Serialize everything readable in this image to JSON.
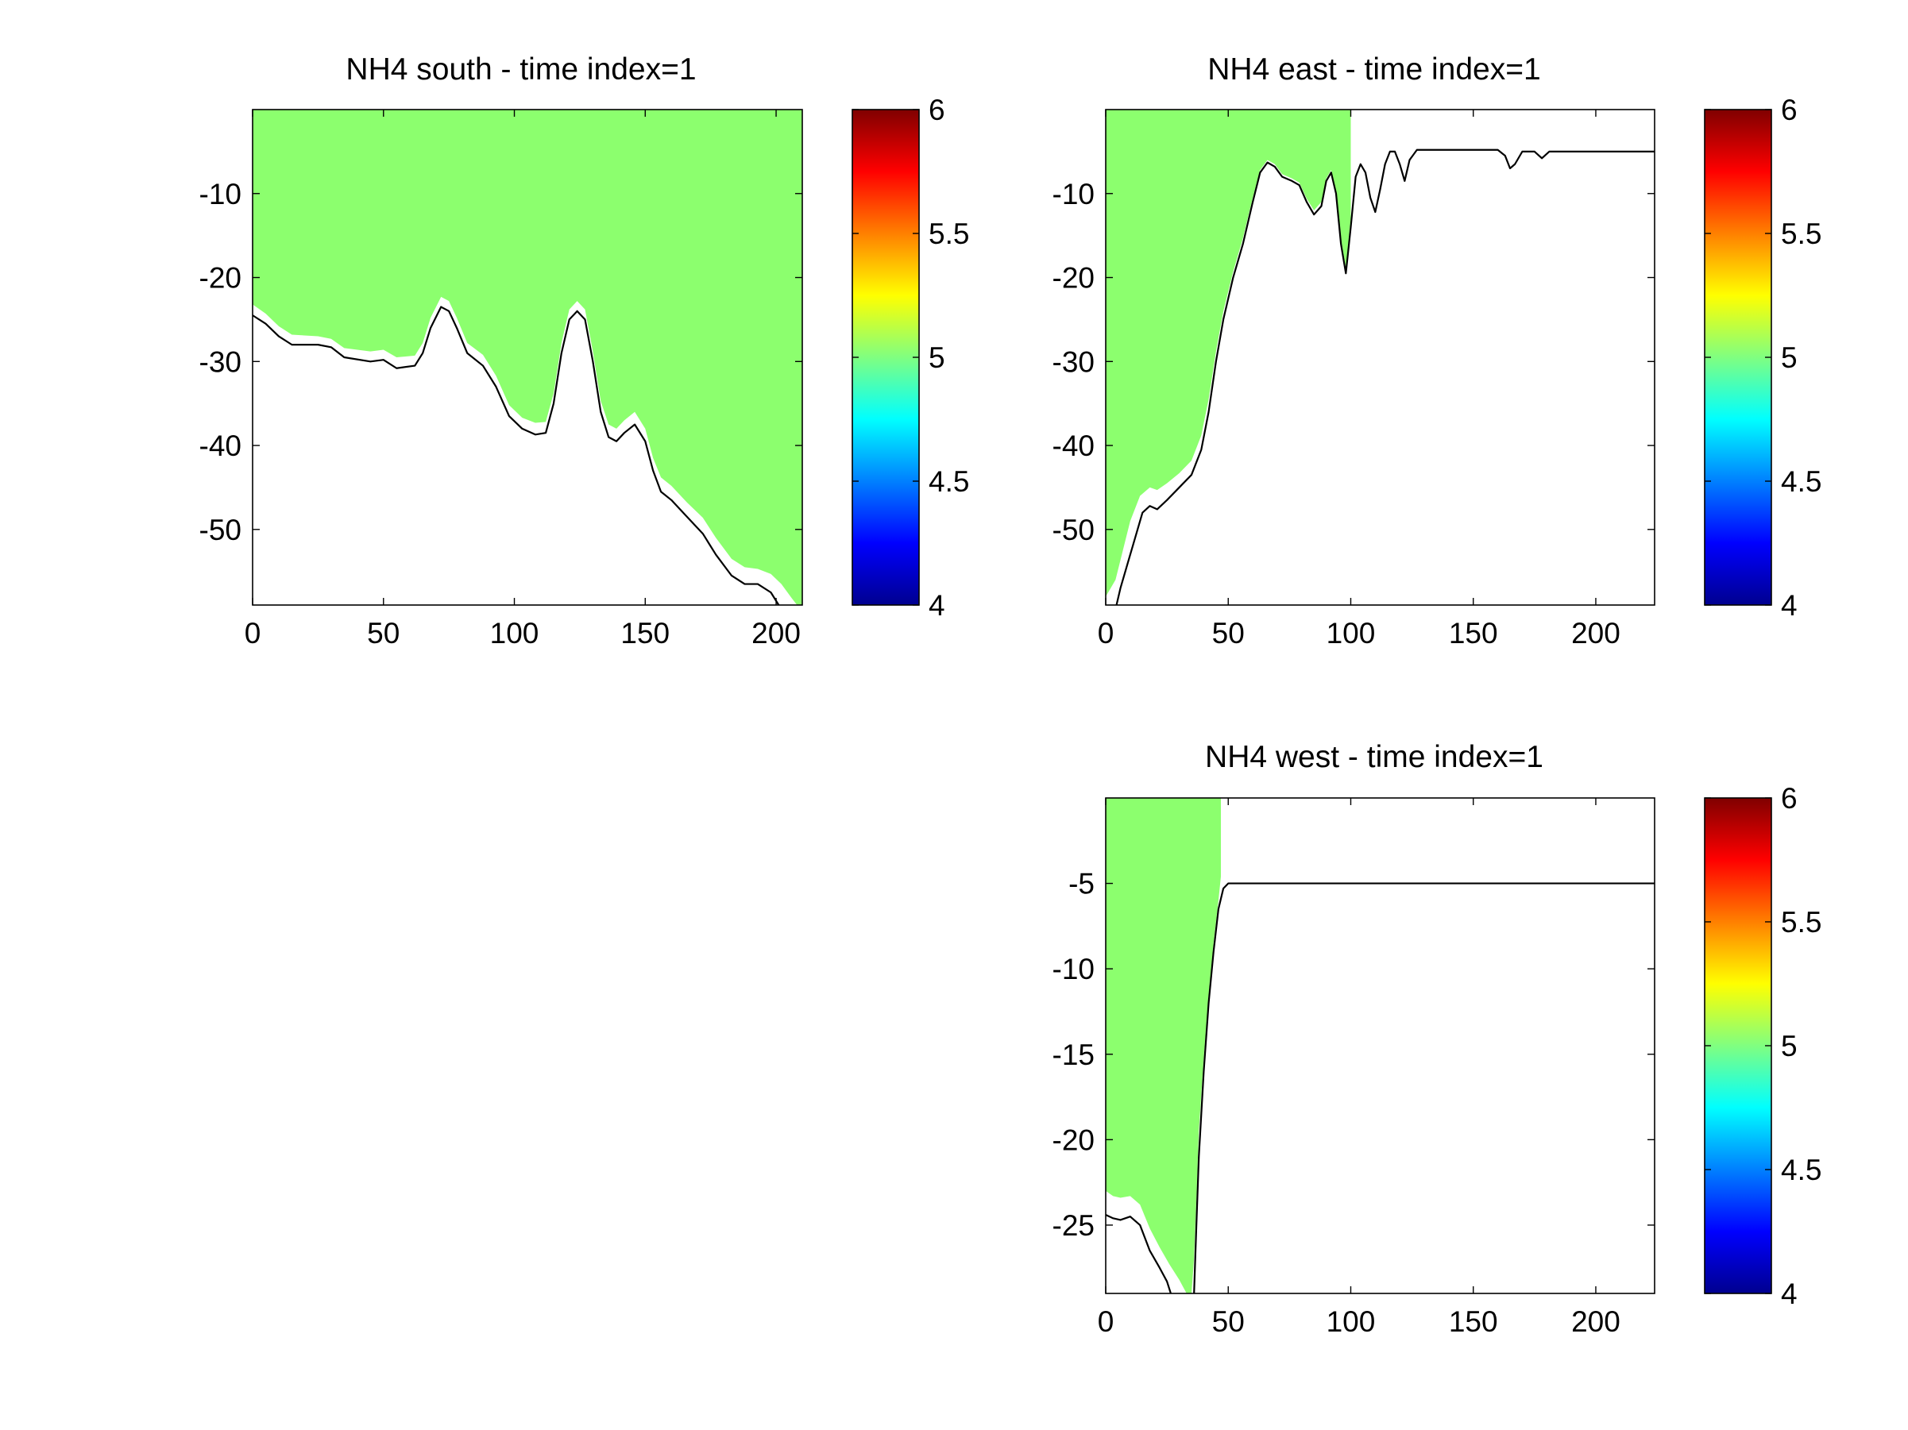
{
  "colors": {
    "fill": "#8cff6e",
    "line": "#000000",
    "axis": "#000000"
  },
  "colormap": [
    "#00008f",
    "#0000ff",
    "#0080ff",
    "#00ffff",
    "#80ff80",
    "#ffff00",
    "#ff8000",
    "#ff0000",
    "#800000"
  ],
  "chart_data": [
    {
      "type": "area",
      "title": "NH4 south - time index=1",
      "xlim": [
        0,
        210
      ],
      "ylim": [
        -59,
        0
      ],
      "xticks": [
        0,
        50,
        100,
        150,
        200
      ],
      "yticks": [
        -10,
        -20,
        -30,
        -40,
        -50
      ],
      "colorbar": {
        "range": [
          4,
          6
        ],
        "ticks": [
          4,
          4.5,
          5,
          5.5,
          6
        ]
      },
      "fill_value": 5,
      "bottom_line": [
        [
          0,
          -24.5
        ],
        [
          5,
          -25.5
        ],
        [
          10,
          -27
        ],
        [
          15,
          -28
        ],
        [
          25,
          -28
        ],
        [
          30,
          -28.3
        ],
        [
          35,
          -29.5
        ],
        [
          45,
          -30
        ],
        [
          50,
          -29.8
        ],
        [
          55,
          -30.8
        ],
        [
          62,
          -30.5
        ],
        [
          65,
          -29
        ],
        [
          68,
          -26
        ],
        [
          72,
          -23.5
        ],
        [
          75,
          -24
        ],
        [
          78,
          -26
        ],
        [
          82,
          -29
        ],
        [
          88,
          -30.5
        ],
        [
          93,
          -33
        ],
        [
          98,
          -36.5
        ],
        [
          103,
          -38
        ],
        [
          108,
          -38.7
        ],
        [
          112,
          -38.5
        ],
        [
          115,
          -35
        ],
        [
          118,
          -29
        ],
        [
          121,
          -25
        ],
        [
          124,
          -24
        ],
        [
          127,
          -25
        ],
        [
          130,
          -30
        ],
        [
          133,
          -36
        ],
        [
          136,
          -39
        ],
        [
          139,
          -39.5
        ],
        [
          142,
          -38.5
        ],
        [
          146,
          -37.5
        ],
        [
          150,
          -39.5
        ],
        [
          153,
          -43
        ],
        [
          156,
          -45.5
        ],
        [
          160,
          -46.5
        ],
        [
          166,
          -48.5
        ],
        [
          172,
          -50.5
        ],
        [
          177,
          -53
        ],
        [
          183,
          -55.5
        ],
        [
          188,
          -56.5
        ],
        [
          193,
          -56.5
        ],
        [
          198,
          -57.5
        ],
        [
          202,
          -59.5
        ]
      ],
      "fill_edge": [
        [
          0,
          -23.2
        ],
        [
          5,
          -24.3
        ],
        [
          10,
          -25.8
        ],
        [
          15,
          -26.8
        ],
        [
          25,
          -27
        ],
        [
          30,
          -27.3
        ],
        [
          35,
          -28.4
        ],
        [
          45,
          -28.8
        ],
        [
          50,
          -28.6
        ],
        [
          55,
          -29.5
        ],
        [
          62,
          -29.3
        ],
        [
          65,
          -27.8
        ],
        [
          68,
          -24.8
        ],
        [
          72,
          -22.3
        ],
        [
          75,
          -22.8
        ],
        [
          78,
          -24.8
        ],
        [
          82,
          -27.8
        ],
        [
          88,
          -29.2
        ],
        [
          93,
          -31.7
        ],
        [
          98,
          -35.2
        ],
        [
          103,
          -36.7
        ],
        [
          108,
          -37.3
        ],
        [
          112,
          -37.2
        ],
        [
          115,
          -33.8
        ],
        [
          118,
          -27.8
        ],
        [
          121,
          -23.8
        ],
        [
          124,
          -22.8
        ],
        [
          127,
          -23.8
        ],
        [
          130,
          -28.8
        ],
        [
          133,
          -34.7
        ],
        [
          136,
          -37.5
        ],
        [
          139,
          -38
        ],
        [
          142,
          -37
        ],
        [
          146,
          -36
        ],
        [
          150,
          -38
        ],
        [
          153,
          -41.5
        ],
        [
          156,
          -43.8
        ],
        [
          160,
          -44.8
        ],
        [
          166,
          -46.8
        ],
        [
          172,
          -48.6
        ],
        [
          177,
          -51
        ],
        [
          183,
          -53.5
        ],
        [
          188,
          -54.5
        ],
        [
          193,
          -54.7
        ],
        [
          198,
          -55.3
        ],
        [
          202,
          -56.5
        ],
        [
          206,
          -58.2
        ],
        [
          208,
          -59
        ]
      ]
    },
    {
      "type": "area",
      "title": "NH4 east - time index=1",
      "xlim": [
        0,
        224
      ],
      "ylim": [
        -59,
        0
      ],
      "xticks": [
        0,
        50,
        100,
        150,
        200
      ],
      "yticks": [
        -10,
        -20,
        -30,
        -40,
        -50
      ],
      "colorbar": {
        "range": [
          4,
          6
        ],
        "ticks": [
          4,
          4.5,
          5,
          5.5,
          6
        ]
      },
      "fill_value": 5,
      "fill_xmax": 100,
      "bottom_line": [
        [
          4,
          -59.5
        ],
        [
          6,
          -57
        ],
        [
          9,
          -54
        ],
        [
          12,
          -51
        ],
        [
          15,
          -48
        ],
        [
          18,
          -47.2
        ],
        [
          21,
          -47.6
        ],
        [
          25,
          -46.5
        ],
        [
          30,
          -45
        ],
        [
          35,
          -43.5
        ],
        [
          39,
          -40.5
        ],
        [
          42,
          -36
        ],
        [
          45,
          -30
        ],
        [
          48,
          -25
        ],
        [
          52,
          -20
        ],
        [
          56,
          -16
        ],
        [
          60,
          -11
        ],
        [
          63,
          -7.5
        ],
        [
          66,
          -6.3
        ],
        [
          69,
          -6.8
        ],
        [
          72,
          -8
        ],
        [
          76,
          -8.5
        ],
        [
          79,
          -9
        ],
        [
          82,
          -11
        ],
        [
          85,
          -12.5
        ],
        [
          88,
          -11.5
        ],
        [
          90,
          -8.5
        ],
        [
          92,
          -7.5
        ],
        [
          94,
          -10
        ],
        [
          96,
          -16
        ],
        [
          98,
          -19.5
        ],
        [
          100,
          -14
        ],
        [
          102,
          -8
        ],
        [
          104,
          -6.5
        ],
        [
          106,
          -7.5
        ],
        [
          108,
          -10.5
        ],
        [
          110,
          -12.2
        ],
        [
          112,
          -9.5
        ],
        [
          114,
          -6.5
        ],
        [
          116,
          -5
        ],
        [
          118,
          -5
        ],
        [
          120,
          -6.5
        ],
        [
          122,
          -8.5
        ],
        [
          124,
          -6
        ],
        [
          127,
          -4.8
        ],
        [
          132,
          -4.8
        ],
        [
          150,
          -4.8
        ],
        [
          160,
          -4.8
        ],
        [
          163,
          -5.5
        ],
        [
          165,
          -7
        ],
        [
          167,
          -6.5
        ],
        [
          170,
          -5
        ],
        [
          175,
          -5
        ],
        [
          178,
          -5.8
        ],
        [
          181,
          -5
        ],
        [
          224,
          -5
        ]
      ],
      "fill_edge": [
        [
          0,
          -58
        ],
        [
          4,
          -56
        ],
        [
          7,
          -52.5
        ],
        [
          10,
          -49
        ],
        [
          14,
          -46
        ],
        [
          18,
          -45
        ],
        [
          21,
          -45.3
        ],
        [
          25,
          -44.5
        ],
        [
          30,
          -43.3
        ],
        [
          35,
          -41.8
        ],
        [
          39,
          -38.8
        ],
        [
          42,
          -34.5
        ],
        [
          45,
          -28.8
        ],
        [
          48,
          -24
        ],
        [
          52,
          -19.3
        ],
        [
          56,
          -15.3
        ],
        [
          60,
          -10.5
        ],
        [
          63,
          -7.2
        ],
        [
          66,
          -6
        ],
        [
          69,
          -6.5
        ],
        [
          72,
          -7.7
        ],
        [
          76,
          -8.2
        ],
        [
          79,
          -8.7
        ],
        [
          82,
          -10.6
        ],
        [
          85,
          -12
        ],
        [
          88,
          -11
        ],
        [
          90,
          -8.2
        ],
        [
          92,
          -7.2
        ],
        [
          94,
          -9.7
        ],
        [
          96,
          -15.5
        ],
        [
          98,
          -18.8
        ],
        [
          100,
          -13
        ]
      ]
    },
    {
      "type": "area",
      "title": "NH4 west - time index=1",
      "xlim": [
        0,
        224
      ],
      "ylim": [
        -29,
        0
      ],
      "xticks": [
        0,
        50,
        100,
        150,
        200
      ],
      "yticks": [
        -5,
        -10,
        -15,
        -20,
        -25
      ],
      "colorbar": {
        "range": [
          4,
          6
        ],
        "ticks": [
          4,
          4.5,
          5,
          5.5,
          6
        ]
      },
      "fill_value": 5,
      "bottom_line": [
        [
          0,
          -24.4
        ],
        [
          3,
          -24.6
        ],
        [
          6,
          -24.7
        ],
        [
          10,
          -24.5
        ],
        [
          14,
          -25
        ],
        [
          18,
          -26.5
        ],
        [
          22,
          -27.5
        ],
        [
          25,
          -28.3
        ],
        [
          27,
          -29.2
        ]
      ],
      "bottom_line_2": [
        [
          36,
          -29.2
        ],
        [
          37,
          -25
        ],
        [
          38,
          -21
        ],
        [
          40,
          -16
        ],
        [
          42,
          -12
        ],
        [
          44,
          -9
        ],
        [
          46,
          -6.5
        ],
        [
          48,
          -5.3
        ],
        [
          50,
          -5
        ],
        [
          224,
          -5
        ]
      ],
      "fill_edge": [
        [
          0,
          -23
        ],
        [
          3,
          -23.3
        ],
        [
          6,
          -23.4
        ],
        [
          10,
          -23.3
        ],
        [
          14,
          -23.8
        ],
        [
          18,
          -25.2
        ],
        [
          22,
          -26.3
        ],
        [
          26,
          -27.3
        ],
        [
          30,
          -28.2
        ],
        [
          33,
          -29
        ],
        [
          35,
          -29
        ],
        [
          36,
          -27
        ],
        [
          37,
          -23.5
        ],
        [
          38,
          -19.5
        ],
        [
          40,
          -15.2
        ],
        [
          42,
          -11.5
        ],
        [
          44,
          -8.5
        ],
        [
          46,
          -6
        ],
        [
          47,
          -4.6
        ],
        [
          47,
          0
        ]
      ]
    }
  ]
}
